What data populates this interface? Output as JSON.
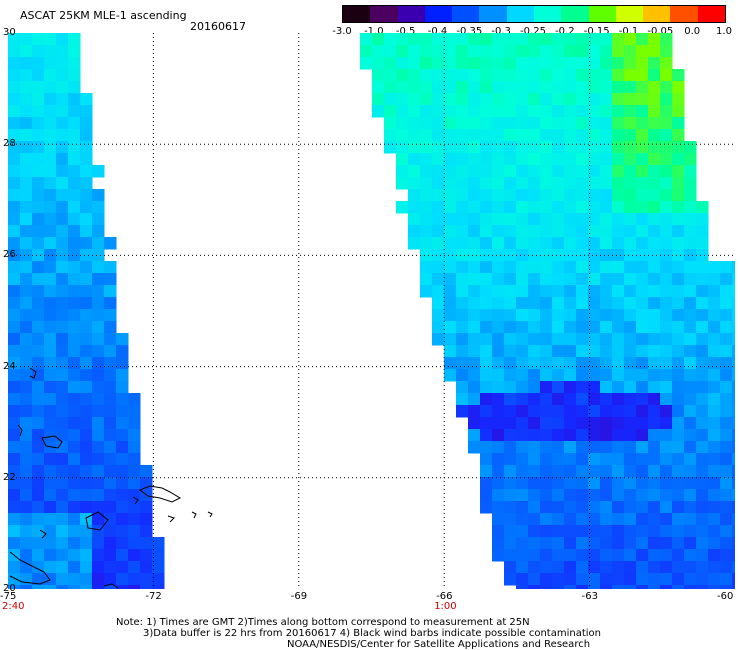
{
  "header": {
    "title": "ASCAT 25KM MLE-1 ascending",
    "date": "20160617"
  },
  "colorbar": {
    "labels": [
      "-3.0",
      "-1.0",
      "-0.5",
      "-0.4",
      "-0.35",
      "-0.3",
      "-0.25",
      "-0.2",
      "-0.15",
      "-0.1",
      "-0.05",
      "0.0",
      "1.0"
    ],
    "colors": [
      "#1a0010",
      "#4b0060",
      "#3a00b0",
      "#0020ff",
      "#0050ff",
      "#0090ff",
      "#00d8ff",
      "#00ffd8",
      "#00ff90",
      "#60ff00",
      "#d0ff00",
      "#ffc000",
      "#ff5000",
      "#ff0000"
    ]
  },
  "map": {
    "lon_ticks": [
      "-75",
      "-72",
      "-69",
      "-66",
      "-63",
      "-60"
    ],
    "lat_ticks": [
      "20",
      "22",
      "24",
      "26",
      "28",
      "30"
    ],
    "lon_range": [
      -75,
      -60
    ],
    "lat_range": [
      20,
      30
    ],
    "time_labels": [
      {
        "text": "2:40",
        "lon": -75
      },
      {
        "text": "1:00",
        "lon": -66
      }
    ]
  },
  "notes": {
    "line1": "Note: 1) Times are GMT 2)Times along bottom correspond to measurement at 25N",
    "line2": "3)Data buffer is 22 hrs from 20160617 4) Black wind barbs indicate possible contamination",
    "line3": "NOAA/NESDIS/Center for Satellite Applications and Research"
  }
}
